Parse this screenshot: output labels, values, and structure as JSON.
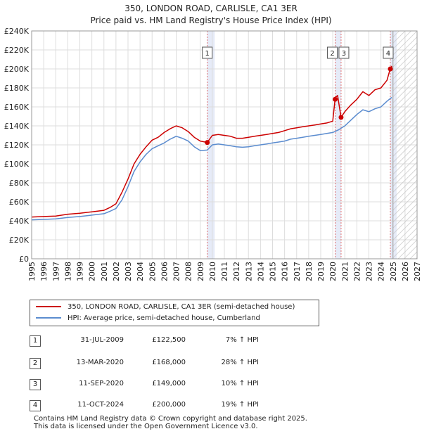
{
  "title_line1": "350, LONDON ROAD, CARLISLE, CA1 3ER",
  "title_line2": "Price paid vs. HM Land Registry's House Price Index (HPI)",
  "chart_data": {
    "type": "line",
    "title": "350, LONDON ROAD, CARLISLE, CA1 3ER — Price paid vs. HM Land Registry's House Price Index (HPI)",
    "xlim": [
      1995,
      2027
    ],
    "ylim": [
      0,
      240000
    ],
    "x_ticks": [
      1995,
      1996,
      1997,
      1998,
      1999,
      2000,
      2001,
      2002,
      2003,
      2004,
      2005,
      2006,
      2007,
      2008,
      2009,
      2010,
      2011,
      2012,
      2013,
      2014,
      2015,
      2016,
      2017,
      2018,
      2019,
      2020,
      2021,
      2022,
      2023,
      2024,
      2025,
      2026,
      2027
    ],
    "y_ticks": [
      0,
      20000,
      40000,
      60000,
      80000,
      100000,
      120000,
      140000,
      160000,
      180000,
      200000,
      220000,
      240000
    ],
    "y_tick_labels": [
      "£0",
      "£20K",
      "£40K",
      "£60K",
      "£80K",
      "£100K",
      "£120K",
      "£140K",
      "£160K",
      "£180K",
      "£200K",
      "£220K",
      "£240K"
    ],
    "shaded_spans": [
      [
        2009.58,
        2010.2
      ],
      [
        2020.2,
        2020.7
      ],
      [
        2024.78,
        2025.3
      ]
    ],
    "future_from": 2025.0,
    "colors": {
      "property": "#cc0000",
      "hpi": "#5b8ccf",
      "shade": "#e6ebf8",
      "marker_line": "#e07070"
    },
    "series": [
      {
        "name": "350, LONDON ROAD, CARLISLE, CA1 3ER (semi-detached house)",
        "color": "#cc0000",
        "x": [
          1995,
          1996,
          1997,
          1998,
          1999,
          2000,
          2001,
          2001.5,
          2002,
          2002.5,
          2003,
          2003.5,
          2004,
          2004.5,
          2005,
          2005.5,
          2006,
          2006.5,
          2007,
          2007.5,
          2008,
          2008.5,
          2009,
          2009.58,
          2010,
          2010.5,
          2011,
          2011.5,
          2012,
          2012.5,
          2013,
          2013.5,
          2014,
          2014.5,
          2015,
          2015.5,
          2016,
          2016.5,
          2017,
          2017.5,
          2018,
          2018.5,
          2019,
          2019.5,
          2020.0,
          2020.19,
          2020.22,
          2020.4,
          2020.69,
          2021,
          2021.5,
          2022,
          2022.5,
          2023,
          2023.5,
          2024,
          2024.5,
          2024.77,
          2024.9
        ],
        "values": [
          44000,
          44500,
          45000,
          47000,
          48000,
          49500,
          51000,
          54000,
          58000,
          70000,
          84000,
          100000,
          110000,
          118000,
          125000,
          128000,
          133000,
          137000,
          140000,
          138000,
          134000,
          128000,
          124000,
          122500,
          130000,
          131000,
          130000,
          129000,
          127000,
          127000,
          128000,
          129000,
          130000,
          131000,
          132000,
          133000,
          135000,
          137000,
          138000,
          139000,
          140000,
          141000,
          142000,
          143000,
          145000,
          168000,
          170000,
          172000,
          149000,
          155000,
          162000,
          168000,
          176000,
          172000,
          178000,
          180000,
          188000,
          200000,
          203000
        ]
      },
      {
        "name": "HPI: Average price, semi-detached house, Cumberland",
        "color": "#5b8ccf",
        "x": [
          1995,
          1996,
          1997,
          1998,
          1999,
          2000,
          2001,
          2001.5,
          2002,
          2002.5,
          2003,
          2003.5,
          2004,
          2004.5,
          2005,
          2005.5,
          2006,
          2006.5,
          2007,
          2007.5,
          2008,
          2008.5,
          2009,
          2009.58,
          2010,
          2010.5,
          2011,
          2011.5,
          2012,
          2012.5,
          2013,
          2013.5,
          2014,
          2014.5,
          2015,
          2015.5,
          2016,
          2016.5,
          2017,
          2017.5,
          2018,
          2018.5,
          2019,
          2019.5,
          2020,
          2020.5,
          2021,
          2021.5,
          2022,
          2022.5,
          2023,
          2023.5,
          2024,
          2024.5,
          2024.9
        ],
        "values": [
          41000,
          41500,
          42000,
          43500,
          44500,
          46000,
          47500,
          50000,
          53000,
          62000,
          76000,
          92000,
          102000,
          110000,
          116000,
          119000,
          122000,
          126000,
          129000,
          127000,
          124000,
          118000,
          114000,
          114500,
          120000,
          121000,
          120000,
          119000,
          118000,
          117500,
          118000,
          119000,
          120000,
          121000,
          122000,
          123000,
          124000,
          126000,
          127000,
          128000,
          129000,
          130000,
          131000,
          132000,
          133000,
          136000,
          140000,
          146000,
          152000,
          157000,
          155000,
          158000,
          160000,
          166000,
          170000
        ]
      }
    ],
    "markers": [
      {
        "label": "1",
        "x": 2009.58,
        "value": 122500
      },
      {
        "label": "2",
        "x": 2020.2,
        "value": 168000
      },
      {
        "label": "3",
        "x": 2020.69,
        "value": 149000
      },
      {
        "label": "4",
        "x": 2024.78,
        "value": 200000
      }
    ]
  },
  "legend": {
    "property_label": "350, LONDON ROAD, CARLISLE, CA1 3ER (semi-detached house)",
    "hpi_label": "HPI: Average price, semi-detached house, Cumberland"
  },
  "transactions": [
    {
      "num": "1",
      "date": "31-JUL-2009",
      "price": "£122,500",
      "hpi": "7% ↑ HPI"
    },
    {
      "num": "2",
      "date": "13-MAR-2020",
      "price": "£168,000",
      "hpi": "28% ↑ HPI"
    },
    {
      "num": "3",
      "date": "11-SEP-2020",
      "price": "£149,000",
      "hpi": "10% ↑ HPI"
    },
    {
      "num": "4",
      "date": "11-OCT-2024",
      "price": "£200,000",
      "hpi": "19% ↑ HPI"
    }
  ],
  "footer_line1": "Contains HM Land Registry data © Crown copyright and database right 2025.",
  "footer_line2": "This data is licensed under the Open Government Licence v3.0."
}
